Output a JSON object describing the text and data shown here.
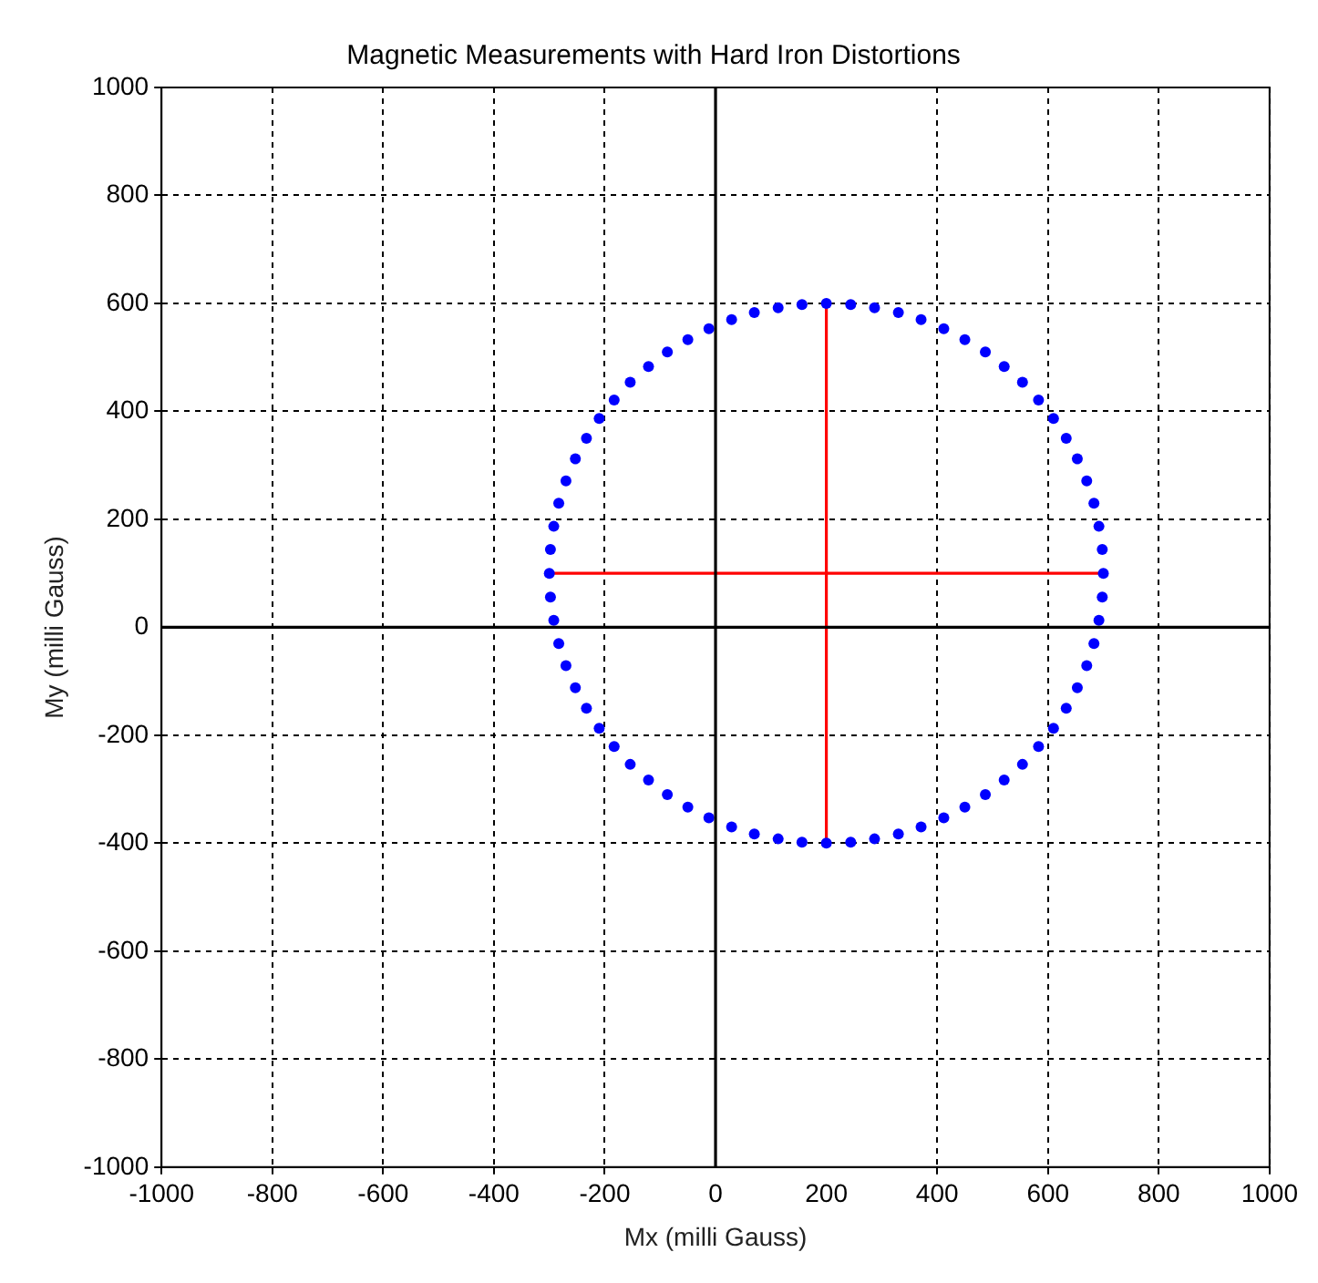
{
  "chart_data": {
    "type": "scatter",
    "title": "Magnetic Measurements with Hard Iron Distortions",
    "xlabel": "Mx (milli Gauss)",
    "ylabel": "My (milli Gauss)",
    "xlim": [
      -1000,
      1000
    ],
    "ylim": [
      -1000,
      1000
    ],
    "xticks": [
      -1000,
      -800,
      -600,
      -400,
      -200,
      0,
      200,
      400,
      600,
      800,
      1000
    ],
    "yticks": [
      -1000,
      -800,
      -600,
      -400,
      -200,
      0,
      200,
      400,
      600,
      800,
      1000
    ],
    "grid": true,
    "legend": false,
    "series": [
      {
        "type": "line",
        "color": "#000000",
        "x": [
          0,
          0
        ],
        "values": [
          -1000,
          1000
        ]
      },
      {
        "type": "line",
        "color": "#000000",
        "x": [
          -1000,
          1000
        ],
        "values": [
          0,
          0
        ]
      },
      {
        "type": "scatter",
        "color": "#0000ff",
        "marker": "circle",
        "x": [
          700,
          698,
          692,
          683,
          670,
          653,
          633,
          610,
          583,
          554,
          521,
          487,
          450,
          412,
          371,
          330,
          287,
          244,
          200,
          156,
          113,
          70,
          29,
          -12,
          -50,
          -87,
          -121,
          -154,
          -183,
          -210,
          -233,
          -253,
          -270,
          -283,
          -292,
          -298,
          -300,
          -298,
          -292,
          -283,
          -270,
          -253,
          -233,
          -210,
          -183,
          -154,
          -121,
          -87,
          -50,
          -12,
          29,
          70,
          113,
          156,
          200,
          244,
          287,
          330,
          371,
          412,
          450,
          487,
          521,
          554,
          583,
          610,
          633,
          653,
          670,
          683,
          692,
          698
        ],
        "values": [
          100,
          144,
          187,
          230,
          271,
          312,
          350,
          387,
          421,
          454,
          483,
          510,
          533,
          553,
          570,
          583,
          592,
          598,
          600,
          598,
          592,
          583,
          570,
          553,
          533,
          510,
          483,
          454,
          421,
          387,
          350,
          312,
          271,
          230,
          187,
          144,
          100,
          56,
          13,
          -30,
          -71,
          -112,
          -150,
          -187,
          -221,
          -254,
          -283,
          -310,
          -333,
          -353,
          -370,
          -383,
          -392,
          -398,
          -400,
          -398,
          -392,
          -383,
          -370,
          -353,
          -333,
          -310,
          -283,
          -254,
          -221,
          -187,
          -150,
          -112,
          -71,
          -30,
          13,
          56
        ]
      },
      {
        "type": "line",
        "color": "#ff0000",
        "x": [
          -300,
          700
        ],
        "values": [
          100,
          100
        ]
      },
      {
        "type": "line",
        "color": "#ff0000",
        "x": [
          200,
          200
        ],
        "values": [
          -400,
          600
        ]
      }
    ]
  }
}
